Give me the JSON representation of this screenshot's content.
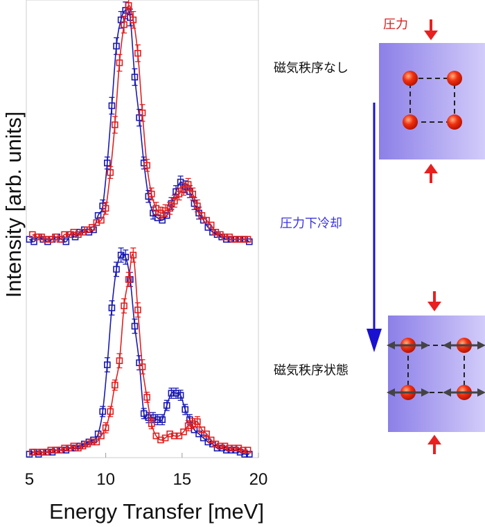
{
  "chart_data": {
    "type": "scatter",
    "xlabel": "Energy Transfer  [meV]",
    "ylabel": "Intensity [arb. units]",
    "xlim": [
      4.8,
      20.0
    ],
    "x_ticks": [
      "5",
      "10",
      "15",
      "20"
    ],
    "grid": false,
    "colors": {
      "blue": "#1a1ab0",
      "red": "#e02020"
    },
    "panels": [
      {
        "name": "upper",
        "ylim": [
          0.0,
          1.0
        ],
        "series": [
          {
            "color": "blue",
            "x": [
              5.0,
              5.3,
              5.6,
              5.9,
              6.2,
              6.5,
              6.8,
              7.1,
              7.4,
              7.7,
              8.0,
              8.3,
              8.6,
              8.9,
              9.2,
              9.5,
              9.8,
              10.1,
              10.4,
              10.7,
              11.0,
              11.3,
              11.6,
              11.9,
              12.2,
              12.5,
              12.8,
              13.1,
              13.4,
              13.7,
              14.0,
              14.3,
              14.6,
              14.9,
              15.2,
              15.5,
              15.8,
              16.1,
              16.4,
              16.7,
              17.0,
              17.3,
              17.6,
              17.9,
              18.2,
              18.5,
              18.8,
              19.1,
              19.4
            ],
            "y": [
              0.02,
              0.01,
              0.03,
              0.02,
              0.01,
              0.02,
              0.03,
              0.02,
              0.01,
              0.04,
              0.03,
              0.05,
              0.06,
              0.05,
              0.06,
              0.12,
              0.16,
              0.34,
              0.58,
              0.83,
              0.94,
              0.98,
              0.95,
              0.7,
              0.53,
              0.34,
              0.2,
              0.13,
              0.11,
              0.1,
              0.12,
              0.17,
              0.22,
              0.26,
              0.24,
              0.22,
              0.17,
              0.13,
              0.1,
              0.07,
              0.05,
              0.04,
              0.03,
              0.02,
              0.02,
              0.02,
              0.02,
              0.02,
              0.01
            ]
          },
          {
            "color": "red",
            "x": [
              5.2,
              5.5,
              5.8,
              6.1,
              6.4,
              6.7,
              7.0,
              7.3,
              7.6,
              7.9,
              8.2,
              8.5,
              8.8,
              9.1,
              9.4,
              9.7,
              10.0,
              10.3,
              10.6,
              10.9,
              11.2,
              11.5,
              11.8,
              12.1,
              12.4,
              12.7,
              13.0,
              13.3,
              13.6,
              13.9,
              14.2,
              14.5,
              14.8,
              15.1,
              15.4,
              15.7,
              16.0,
              16.3,
              16.6,
              16.9,
              17.2,
              17.5,
              17.8,
              18.1,
              18.4,
              18.7,
              19.0,
              19.3
            ],
            "y": [
              0.04,
              0.03,
              0.03,
              0.02,
              0.02,
              0.03,
              0.02,
              0.04,
              0.04,
              0.05,
              0.04,
              0.05,
              0.06,
              0.07,
              0.09,
              0.1,
              0.15,
              0.3,
              0.5,
              0.76,
              0.92,
              1.0,
              0.94,
              0.8,
              0.55,
              0.33,
              0.21,
              0.15,
              0.13,
              0.14,
              0.15,
              0.18,
              0.21,
              0.23,
              0.25,
              0.21,
              0.16,
              0.12,
              0.1,
              0.08,
              0.05,
              0.04,
              0.03,
              0.03,
              0.02,
              0.02,
              0.02,
              0.02
            ]
          }
        ]
      },
      {
        "name": "lower",
        "ylim": [
          0.0,
          1.0
        ],
        "series": [
          {
            "color": "blue",
            "x": [
              5.0,
              5.3,
              5.6,
              5.9,
              6.2,
              6.5,
              6.8,
              7.1,
              7.4,
              7.7,
              8.0,
              8.3,
              8.6,
              8.9,
              9.2,
              9.5,
              9.8,
              10.1,
              10.4,
              10.7,
              11.0,
              11.3,
              11.6,
              11.9,
              12.2,
              12.5,
              12.8,
              13.1,
              13.4,
              13.7,
              14.0,
              14.3,
              14.6,
              14.9,
              15.2,
              15.5,
              15.8,
              16.1,
              16.4,
              16.7,
              17.0,
              17.3,
              17.6,
              17.9,
              18.2,
              18.5,
              18.8,
              19.1,
              19.4
            ],
            "y": [
              0.0,
              0.01,
              0.0,
              0.01,
              0.01,
              0.01,
              0.02,
              0.02,
              0.02,
              0.03,
              0.03,
              0.04,
              0.05,
              0.06,
              0.07,
              0.1,
              0.21,
              0.44,
              0.72,
              0.91,
              0.98,
              0.97,
              0.86,
              0.63,
              0.45,
              0.2,
              0.18,
              0.18,
              0.17,
              0.17,
              0.24,
              0.3,
              0.3,
              0.29,
              0.22,
              0.17,
              0.12,
              0.1,
              0.08,
              0.06,
              0.05,
              0.03,
              0.03,
              0.02,
              0.02,
              0.02,
              0.01,
              0.0,
              0.0
            ]
          },
          {
            "color": "red",
            "x": [
              5.2,
              5.5,
              5.8,
              6.1,
              6.4,
              6.7,
              7.0,
              7.3,
              7.6,
              7.9,
              8.2,
              8.5,
              8.8,
              9.1,
              9.4,
              9.7,
              10.0,
              10.3,
              10.6,
              10.9,
              11.2,
              11.5,
              11.8,
              12.1,
              12.4,
              12.7,
              13.0,
              13.3,
              13.6,
              13.9,
              14.2,
              14.5,
              14.8,
              15.1,
              15.4,
              15.7,
              16.0,
              16.3,
              16.6,
              16.9,
              17.2,
              17.5,
              17.8,
              18.1,
              18.4,
              18.7,
              19.0,
              19.3
            ],
            "y": [
              0.01,
              0.01,
              0.01,
              0.01,
              0.02,
              0.02,
              0.02,
              0.03,
              0.03,
              0.04,
              0.03,
              0.04,
              0.05,
              0.06,
              0.06,
              0.09,
              0.13,
              0.21,
              0.34,
              0.46,
              0.73,
              0.86,
              0.98,
              0.71,
              0.43,
              0.28,
              0.15,
              0.09,
              0.07,
              0.08,
              0.1,
              0.09,
              0.09,
              0.11,
              0.14,
              0.15,
              0.16,
              0.12,
              0.1,
              0.07,
              0.05,
              0.04,
              0.04,
              0.03,
              0.03,
              0.03,
              0.02,
              0.02
            ]
          }
        ]
      }
    ]
  },
  "diagram": {
    "pressure_label": "圧力",
    "state_no_order": "磁気秩序なし",
    "process_label": "圧力下冷却",
    "state_order": "磁気秩序状態"
  }
}
